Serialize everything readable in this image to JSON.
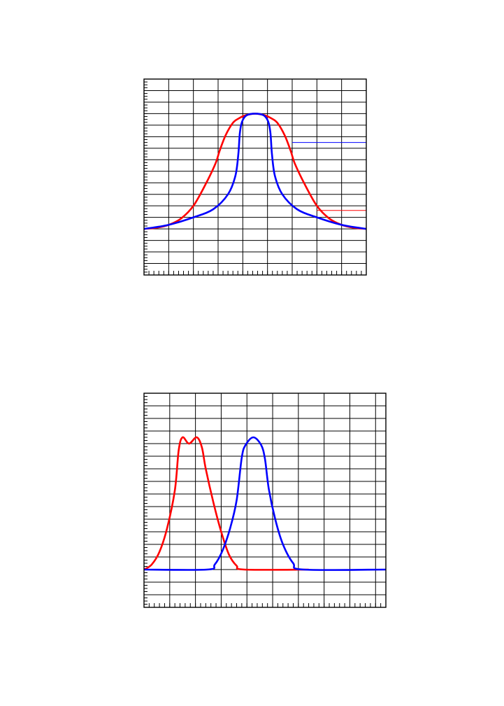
{
  "chart_data": [
    {
      "type": "line",
      "title": "",
      "xlabel": "",
      "ylabel": "",
      "xlim": [
        0,
        9
      ],
      "ylim": [
        -4,
        13
      ],
      "grid": true,
      "x_major_step": 1,
      "y_major_step": 1,
      "x_minor_per_major": 5,
      "y_minor_per_major": 4,
      "series": [
        {
          "color": "#ff0000",
          "points": [
            [
              0,
              0
            ],
            [
              0.5,
              0.1
            ],
            [
              1,
              0.35
            ],
            [
              1.5,
              0.9
            ],
            [
              2,
              2
            ],
            [
              2.5,
              3.9
            ],
            [
              2.9,
              5.7
            ],
            [
              3.05,
              6.7
            ],
            [
              3.3,
              8.1
            ],
            [
              3.6,
              9.2
            ],
            [
              3.85,
              9.6
            ],
            [
              4.1,
              9.85
            ],
            [
              4.5,
              10
            ],
            [
              4.9,
              9.85
            ],
            [
              5.15,
              9.6
            ],
            [
              5.4,
              9.2
            ],
            [
              5.7,
              8.1
            ],
            [
              5.95,
              6.7
            ],
            [
              6.1,
              5.7
            ],
            [
              6.5,
              3.9
            ],
            [
              7,
              2
            ],
            [
              7.5,
              0.9
            ],
            [
              8,
              0.35
            ],
            [
              8.5,
              0.1
            ],
            [
              9,
              0
            ]
          ]
        },
        {
          "color": "#0000ff",
          "points": [
            [
              0,
              0
            ],
            [
              1,
              0.35
            ],
            [
              2,
              1
            ],
            [
              2.8,
              1.7
            ],
            [
              3.4,
              3
            ],
            [
              3.7,
              4.6
            ],
            [
              3.82,
              6.5
            ],
            [
              3.88,
              8.3
            ],
            [
              3.97,
              9.3
            ],
            [
              4.15,
              9.85
            ],
            [
              4.5,
              10
            ],
            [
              4.85,
              9.85
            ],
            [
              5.03,
              9.3
            ],
            [
              5.12,
              8.3
            ],
            [
              5.18,
              6.5
            ],
            [
              5.3,
              4.6
            ],
            [
              5.6,
              3
            ],
            [
              6.2,
              1.7
            ],
            [
              7,
              1
            ],
            [
              8,
              0.35
            ],
            [
              9,
              0
            ]
          ]
        }
      ],
      "reference_lines": [
        {
          "y": 7.5,
          "x_from": 6,
          "x_to": 9,
          "color": "#0000ff"
        },
        {
          "y": 1.6,
          "x_from": 7,
          "x_to": 9,
          "color": "#ff0000"
        }
      ]
    },
    {
      "type": "line",
      "title": "",
      "xlabel": "",
      "ylabel": "",
      "xlim": [
        0,
        9.4
      ],
      "ylim": [
        -3,
        14
      ],
      "grid": true,
      "x_major_step": 1,
      "y_major_step": 1,
      "x_minor_per_major": 5,
      "y_minor_per_major": 4,
      "series": [
        {
          "color": "#ff0000",
          "points": [
            [
              0,
              0
            ],
            [
              0.3,
              0.4
            ],
            [
              0.6,
              1.4
            ],
            [
              0.9,
              3.3
            ],
            [
              1.2,
              6.3
            ],
            [
              1.35,
              9.5
            ],
            [
              1.5,
              10.5
            ],
            [
              1.75,
              10
            ],
            [
              2.05,
              10.5
            ],
            [
              2.25,
              9.7
            ],
            [
              2.4,
              8
            ],
            [
              2.7,
              5.3
            ],
            [
              3,
              3
            ],
            [
              3.3,
              1.2
            ],
            [
              3.6,
              0.3
            ],
            [
              3.9,
              0
            ],
            [
              6.4,
              0
            ]
          ]
        },
        {
          "color": "#0000ff",
          "points": [
            [
              0,
              0
            ],
            [
              2.45,
              0
            ],
            [
              2.75,
              0.4
            ],
            [
              3.05,
              1.5
            ],
            [
              3.35,
              3.3
            ],
            [
              3.6,
              5.5
            ],
            [
              3.8,
              8.9
            ],
            [
              3.95,
              9.9
            ],
            [
              4.25,
              10.5
            ],
            [
              4.55,
              9.9
            ],
            [
              4.7,
              8.8
            ],
            [
              4.85,
              6.4
            ],
            [
              5.1,
              4
            ],
            [
              5.4,
              2
            ],
            [
              5.8,
              0.5
            ],
            [
              6.2,
              0
            ],
            [
              9.4,
              0
            ]
          ]
        }
      ]
    }
  ]
}
